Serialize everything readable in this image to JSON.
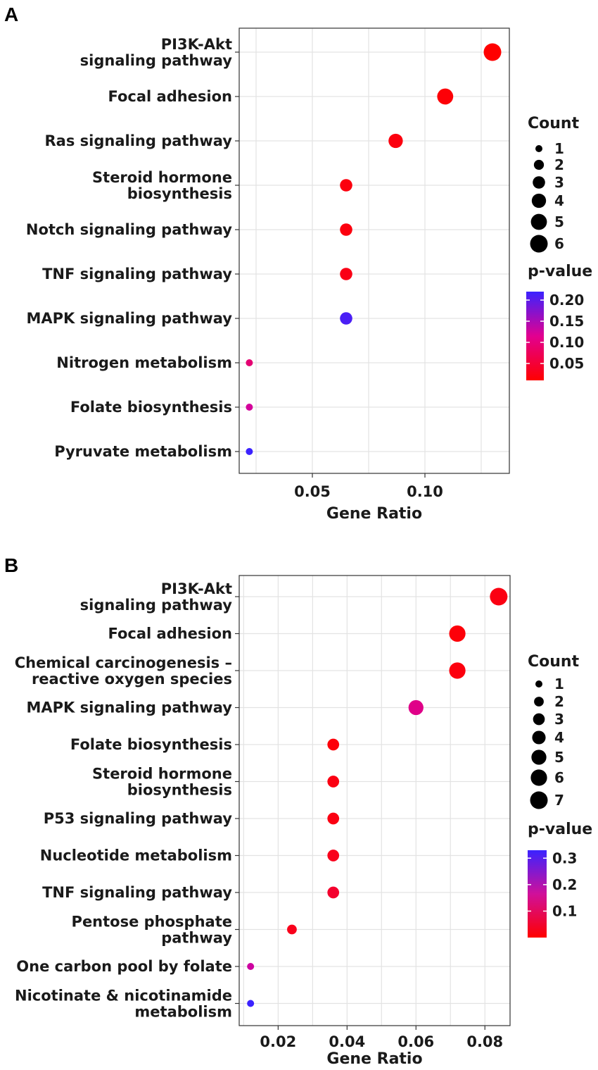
{
  "chart_data": [
    {
      "panel": "A",
      "type": "scatter",
      "xlabel": "Gene Ratio",
      "x_ticks": [
        0.05,
        0.1
      ],
      "x_tick_labels": [
        "0.05",
        "0.10"
      ],
      "xlim": [
        0.0175,
        0.1375
      ],
      "categories": [
        "PI3K-Akt\nsignaling pathway",
        "Focal adhesion",
        "Ras signaling pathway",
        "Steroid hormone\nbiosynthesis",
        "Notch signaling pathway",
        "TNF signaling pathway",
        "MAPK signaling pathway",
        "Nitrogen metabolism",
        "Folate biosynthesis",
        "Pyruvate metabolism"
      ],
      "gene_ratio": [
        0.13,
        0.109,
        0.087,
        0.065,
        0.065,
        0.065,
        0.065,
        0.022,
        0.022,
        0.022
      ],
      "count": [
        6,
        5,
        4,
        3,
        3,
        3,
        3,
        1,
        1,
        1
      ],
      "p_value": [
        0.01,
        0.015,
        0.02,
        0.02,
        0.02,
        0.025,
        0.21,
        0.09,
        0.12,
        0.22
      ],
      "size_legend": {
        "title": "Count",
        "values": [
          "1",
          "2",
          "3",
          "4",
          "5",
          "6"
        ]
      },
      "color_legend": {
        "title": "p-value",
        "min": 0.01,
        "max": 0.22,
        "ticks": [
          0.2,
          0.15,
          0.1,
          0.05
        ],
        "tick_labels": [
          "0.20",
          "0.15",
          "0.10",
          "0.05"
        ],
        "low_color": "#ff0000",
        "high_color": "#3b22ff"
      }
    },
    {
      "panel": "B",
      "type": "scatter",
      "xlabel": "Gene Ratio",
      "x_ticks": [
        0.02,
        0.04,
        0.06,
        0.08
      ],
      "x_tick_labels": [
        "0.02",
        "0.04",
        "0.06",
        "0.08"
      ],
      "xlim": [
        0.0087,
        0.0873
      ],
      "categories": [
        "PI3K-Akt\nsignaling pathway",
        "Focal adhesion",
        "Chemical carcinogenesis –\nreactive oxygen species",
        "MAPK signaling pathway",
        "Folate biosynthesis",
        "Steroid hormone\nbiosynthesis",
        "P53 signaling pathway",
        "Nucleotide metabolism",
        "TNF signaling pathway",
        "Pentose phosphate\npathway",
        "One carbon pool by folate",
        "Nicotinate & nicotinamide\nmetabolism"
      ],
      "gene_ratio": [
        0.084,
        0.072,
        0.072,
        0.06,
        0.036,
        0.036,
        0.036,
        0.036,
        0.036,
        0.024,
        0.012,
        0.012
      ],
      "count": [
        7,
        6,
        6,
        5,
        3,
        3,
        3,
        3,
        3,
        2,
        1,
        1
      ],
      "p_value": [
        0.02,
        0.01,
        0.015,
        0.15,
        0.01,
        0.02,
        0.02,
        0.03,
        0.05,
        0.03,
        0.18,
        0.33
      ],
      "size_legend": {
        "title": "Count",
        "values": [
          "1",
          "2",
          "3",
          "4",
          "5",
          "6",
          "7"
        ]
      },
      "color_legend": {
        "title": "p-value",
        "min": 0.0,
        "max": 0.33,
        "ticks": [
          0.3,
          0.2,
          0.1
        ],
        "tick_labels": [
          "0.3",
          "0.2",
          "0.1"
        ],
        "low_color": "#ff0000",
        "high_color": "#3b22ff"
      }
    }
  ]
}
